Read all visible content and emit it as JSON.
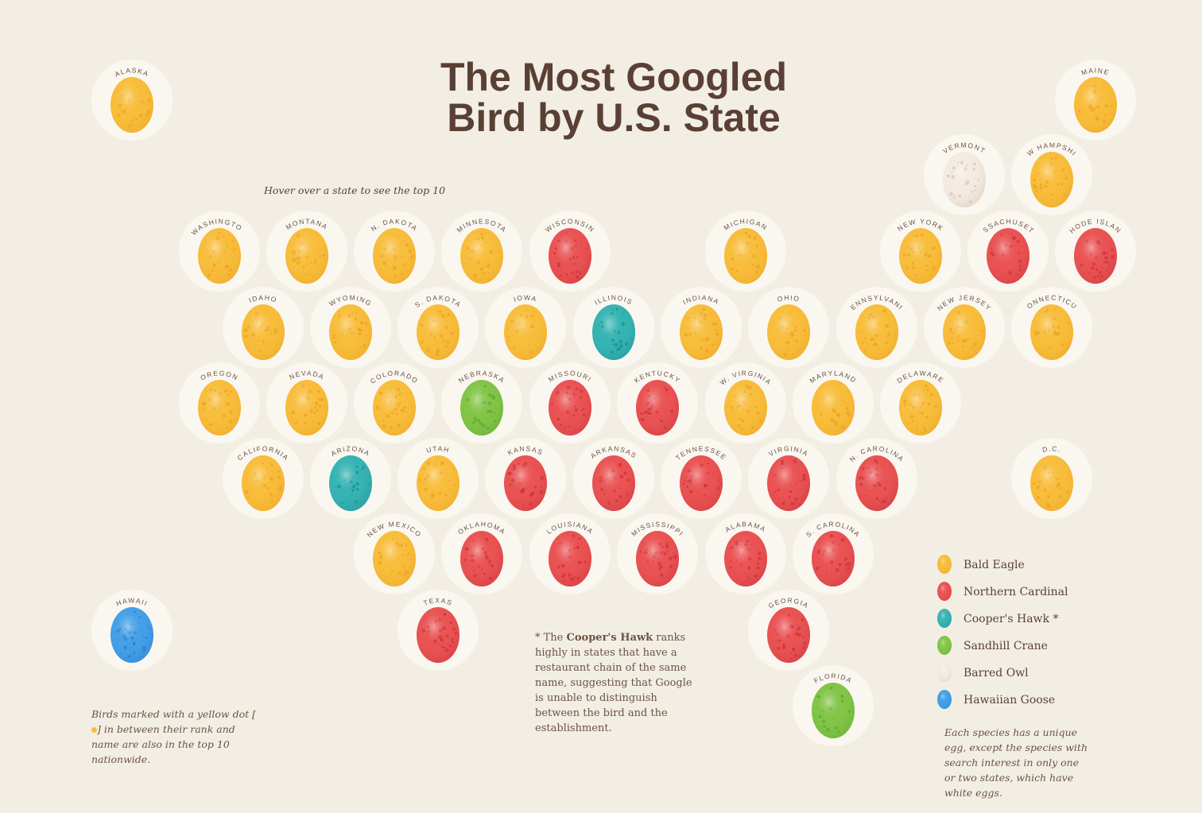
{
  "title_lines": [
    "The Most Googled",
    "Bird by U.S. State"
  ],
  "hint": "Hover over a state to see the top 10",
  "species": [
    {
      "name": "Bald Eagle",
      "color": "#f8bd3b",
      "dot_color": "#e9a124",
      "states": [
        "ALASKA",
        "MAINE",
        "NEW HAMPSHIRE",
        "WASHINGTON",
        "MONTANA",
        "N. DAKOTA",
        "MINNESOTA",
        "MICHIGAN",
        "NEW YORK",
        "IDAHO",
        "WYOMING",
        "S. DAKOTA",
        "IOWA",
        "INDIANA",
        "OHIO",
        "PENNSYLVANIA",
        "NEW JERSEY",
        "CONNECTICUT",
        "OREGON",
        "NEVADA",
        "COLORADO",
        "W. VIRGINIA",
        "MARYLAND",
        "DELAWARE",
        "CALIFORNIA",
        "UTAH",
        "D.C.",
        "NEW MEXICO"
      ]
    },
    {
      "name": "Northern Cardinal",
      "color": "#ea5353",
      "dot_color": "#c8323a",
      "states": [
        "WISCONSIN",
        "MASSACHUSETTS",
        "RHODE ISLAND",
        "MISSOURI",
        "KENTUCKY",
        "KANSAS",
        "ARKANSAS",
        "TENNESSEE",
        "VIRGINIA",
        "N. CAROLINA",
        "OKLAHOMA",
        "LOUISIANA",
        "MISSISSIPPI",
        "ALABAMA",
        "S. CAROLINA",
        "TEXAS",
        "GEORGIA"
      ]
    },
    {
      "name": "Cooper's Hawk *",
      "color": "#36b4b3",
      "dot_color": "#1e8c90",
      "states": [
        "ILLINOIS",
        "ARIZONA"
      ]
    },
    {
      "name": "Sandhill Crane",
      "color": "#82c547",
      "dot_color": "#5ea72f",
      "states": [
        "NEBRASKA",
        "FLORIDA"
      ]
    },
    {
      "name": "Barred Owl",
      "color": "#f3ebe2",
      "dot_color": "#d9c2ab",
      "states": [
        "VERMONT"
      ]
    },
    {
      "name": "Hawaiian Goose",
      "color": "#45a0e8",
      "dot_color": "#2b78c6",
      "states": [
        "HAWAII"
      ]
    }
  ],
  "hawk_note": {
    "prefix": "* The",
    "bold": "Cooper's Hawk",
    "text": "ranks highly in states that have a restaurant chain of the same name, suggesting that Google is unable to distinguish between the bird and the establishment."
  },
  "dot_note": {
    "before": "Birds marked with a yellow dot [",
    "after": "] in between their rank and name are also in the top 10 nationwide."
  },
  "legend_note": "Each species has a unique egg, except the species with search interest in only one or two states, which have white eggs."
}
